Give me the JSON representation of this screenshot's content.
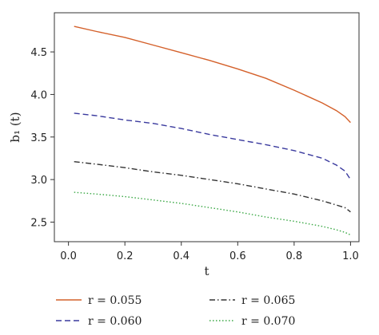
{
  "chart_data": {
    "type": "line",
    "xlabel": "t",
    "ylabel": "b₁ (t)",
    "xlim": [
      -0.05,
      1.03
    ],
    "ylim": [
      2.27,
      4.96
    ],
    "xticks": [
      0.0,
      0.2,
      0.4,
      0.6,
      0.8,
      1.0
    ],
    "xtick_labels": [
      "0.0",
      "0.2",
      "0.4",
      "0.6",
      "0.8",
      "1.0"
    ],
    "yticks": [
      2.5,
      3.0,
      3.5,
      4.0,
      4.5
    ],
    "ytick_labels": [
      "2.5",
      "3.0",
      "3.5",
      "4.0",
      "4.5"
    ],
    "legend_position": "bottom",
    "series": [
      {
        "name": "r = 0.055",
        "color": "#d4602a",
        "style": "solid",
        "x": [
          0.02,
          0.1,
          0.2,
          0.3,
          0.4,
          0.5,
          0.6,
          0.7,
          0.8,
          0.9,
          0.95,
          0.98,
          1.0
        ],
        "y": [
          4.8,
          4.74,
          4.67,
          4.58,
          4.49,
          4.4,
          4.3,
          4.19,
          4.05,
          3.9,
          3.81,
          3.74,
          3.67
        ]
      },
      {
        "name": "r = 0.060",
        "color": "#3a3a9e",
        "style": "dashed",
        "x": [
          0.02,
          0.1,
          0.2,
          0.3,
          0.4,
          0.5,
          0.6,
          0.7,
          0.8,
          0.9,
          0.95,
          0.98,
          1.0
        ],
        "y": [
          3.78,
          3.75,
          3.7,
          3.66,
          3.6,
          3.53,
          3.47,
          3.41,
          3.34,
          3.25,
          3.17,
          3.1,
          3.0
        ]
      },
      {
        "name": "r = 0.065",
        "color": "#333333",
        "style": "dashdot",
        "x": [
          0.02,
          0.1,
          0.2,
          0.3,
          0.4,
          0.5,
          0.6,
          0.7,
          0.8,
          0.9,
          0.95,
          0.98,
          1.0
        ],
        "y": [
          3.21,
          3.18,
          3.14,
          3.09,
          3.05,
          3.0,
          2.95,
          2.89,
          2.83,
          2.75,
          2.7,
          2.67,
          2.62
        ]
      },
      {
        "name": "r = 0.070",
        "color": "#3aa845",
        "style": "dotted",
        "x": [
          0.02,
          0.1,
          0.2,
          0.3,
          0.4,
          0.5,
          0.6,
          0.7,
          0.8,
          0.9,
          0.95,
          0.98,
          1.0
        ],
        "y": [
          2.85,
          2.83,
          2.8,
          2.76,
          2.72,
          2.67,
          2.62,
          2.56,
          2.51,
          2.45,
          2.41,
          2.38,
          2.35
        ]
      }
    ]
  }
}
